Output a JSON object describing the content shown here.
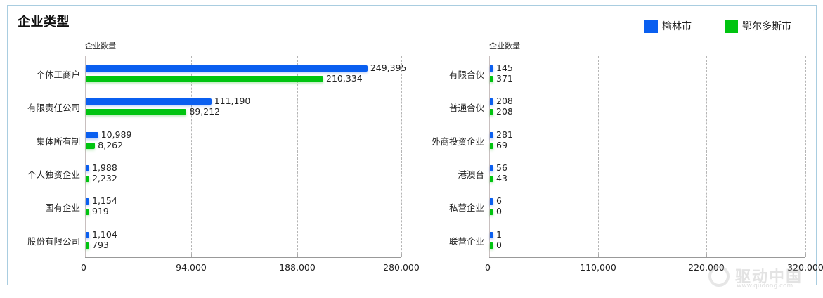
{
  "title": "企业类型",
  "legend": [
    {
      "label": "榆林市",
      "color": "#0a5ff0"
    },
    {
      "label": "鄂尔多斯市",
      "color": "#00c410"
    }
  ],
  "watermark": {
    "text": "驱动中国",
    "url": "www.qudong.com"
  },
  "chart_data": [
    {
      "type": "bar",
      "orientation": "horizontal",
      "title": "企业类型",
      "ylabel": "企业数量",
      "xlabel": "",
      "categories": [
        "个体工商户",
        "有限责任公司",
        "集体所有制",
        "个人独资企业",
        "国有企业",
        "股份有限公司"
      ],
      "series": [
        {
          "name": "榆林市",
          "color": "#0a5ff0",
          "values": [
            249395,
            111190,
            10989,
            1988,
            1154,
            1104
          ],
          "labels": [
            "249,395",
            "111,190",
            "10,989",
            "1,988",
            "1,154",
            "1,104"
          ]
        },
        {
          "name": "鄂尔多斯市",
          "color": "#00c410",
          "values": [
            210334,
            89212,
            8262,
            2232,
            919,
            793
          ],
          "labels": [
            "210,334",
            "89,212",
            "8,262",
            "2,232",
            "919",
            "793"
          ]
        }
      ],
      "xlim": [
        0,
        280000
      ],
      "ticks": [
        "0",
        "94,000",
        "188,000",
        "280,000"
      ],
      "tick_values": [
        0,
        94000,
        188000,
        280000
      ],
      "grid": true,
      "legend_position": "top-right"
    },
    {
      "type": "bar",
      "orientation": "horizontal",
      "ylabel": "企业数量",
      "xlabel": "",
      "categories": [
        "有限合伙",
        "普通合伙",
        "外商投资企业",
        "港澳台",
        "私营企业",
        "联营企业"
      ],
      "series": [
        {
          "name": "榆林市",
          "color": "#0a5ff0",
          "values": [
            145,
            208,
            281,
            56,
            6,
            1
          ],
          "labels": [
            "145",
            "208",
            "281",
            "56",
            "6",
            "1"
          ]
        },
        {
          "name": "鄂尔多斯市",
          "color": "#00c410",
          "values": [
            371,
            208,
            69,
            43,
            0,
            0
          ],
          "labels": [
            "371",
            "208",
            "69",
            "43",
            "0",
            "0"
          ]
        }
      ],
      "xlim": [
        0,
        320000
      ],
      "ticks": [
        "0",
        "110,000",
        "220,000",
        "320,000"
      ],
      "tick_values": [
        0,
        110000,
        220000,
        320000
      ],
      "grid": true
    }
  ]
}
